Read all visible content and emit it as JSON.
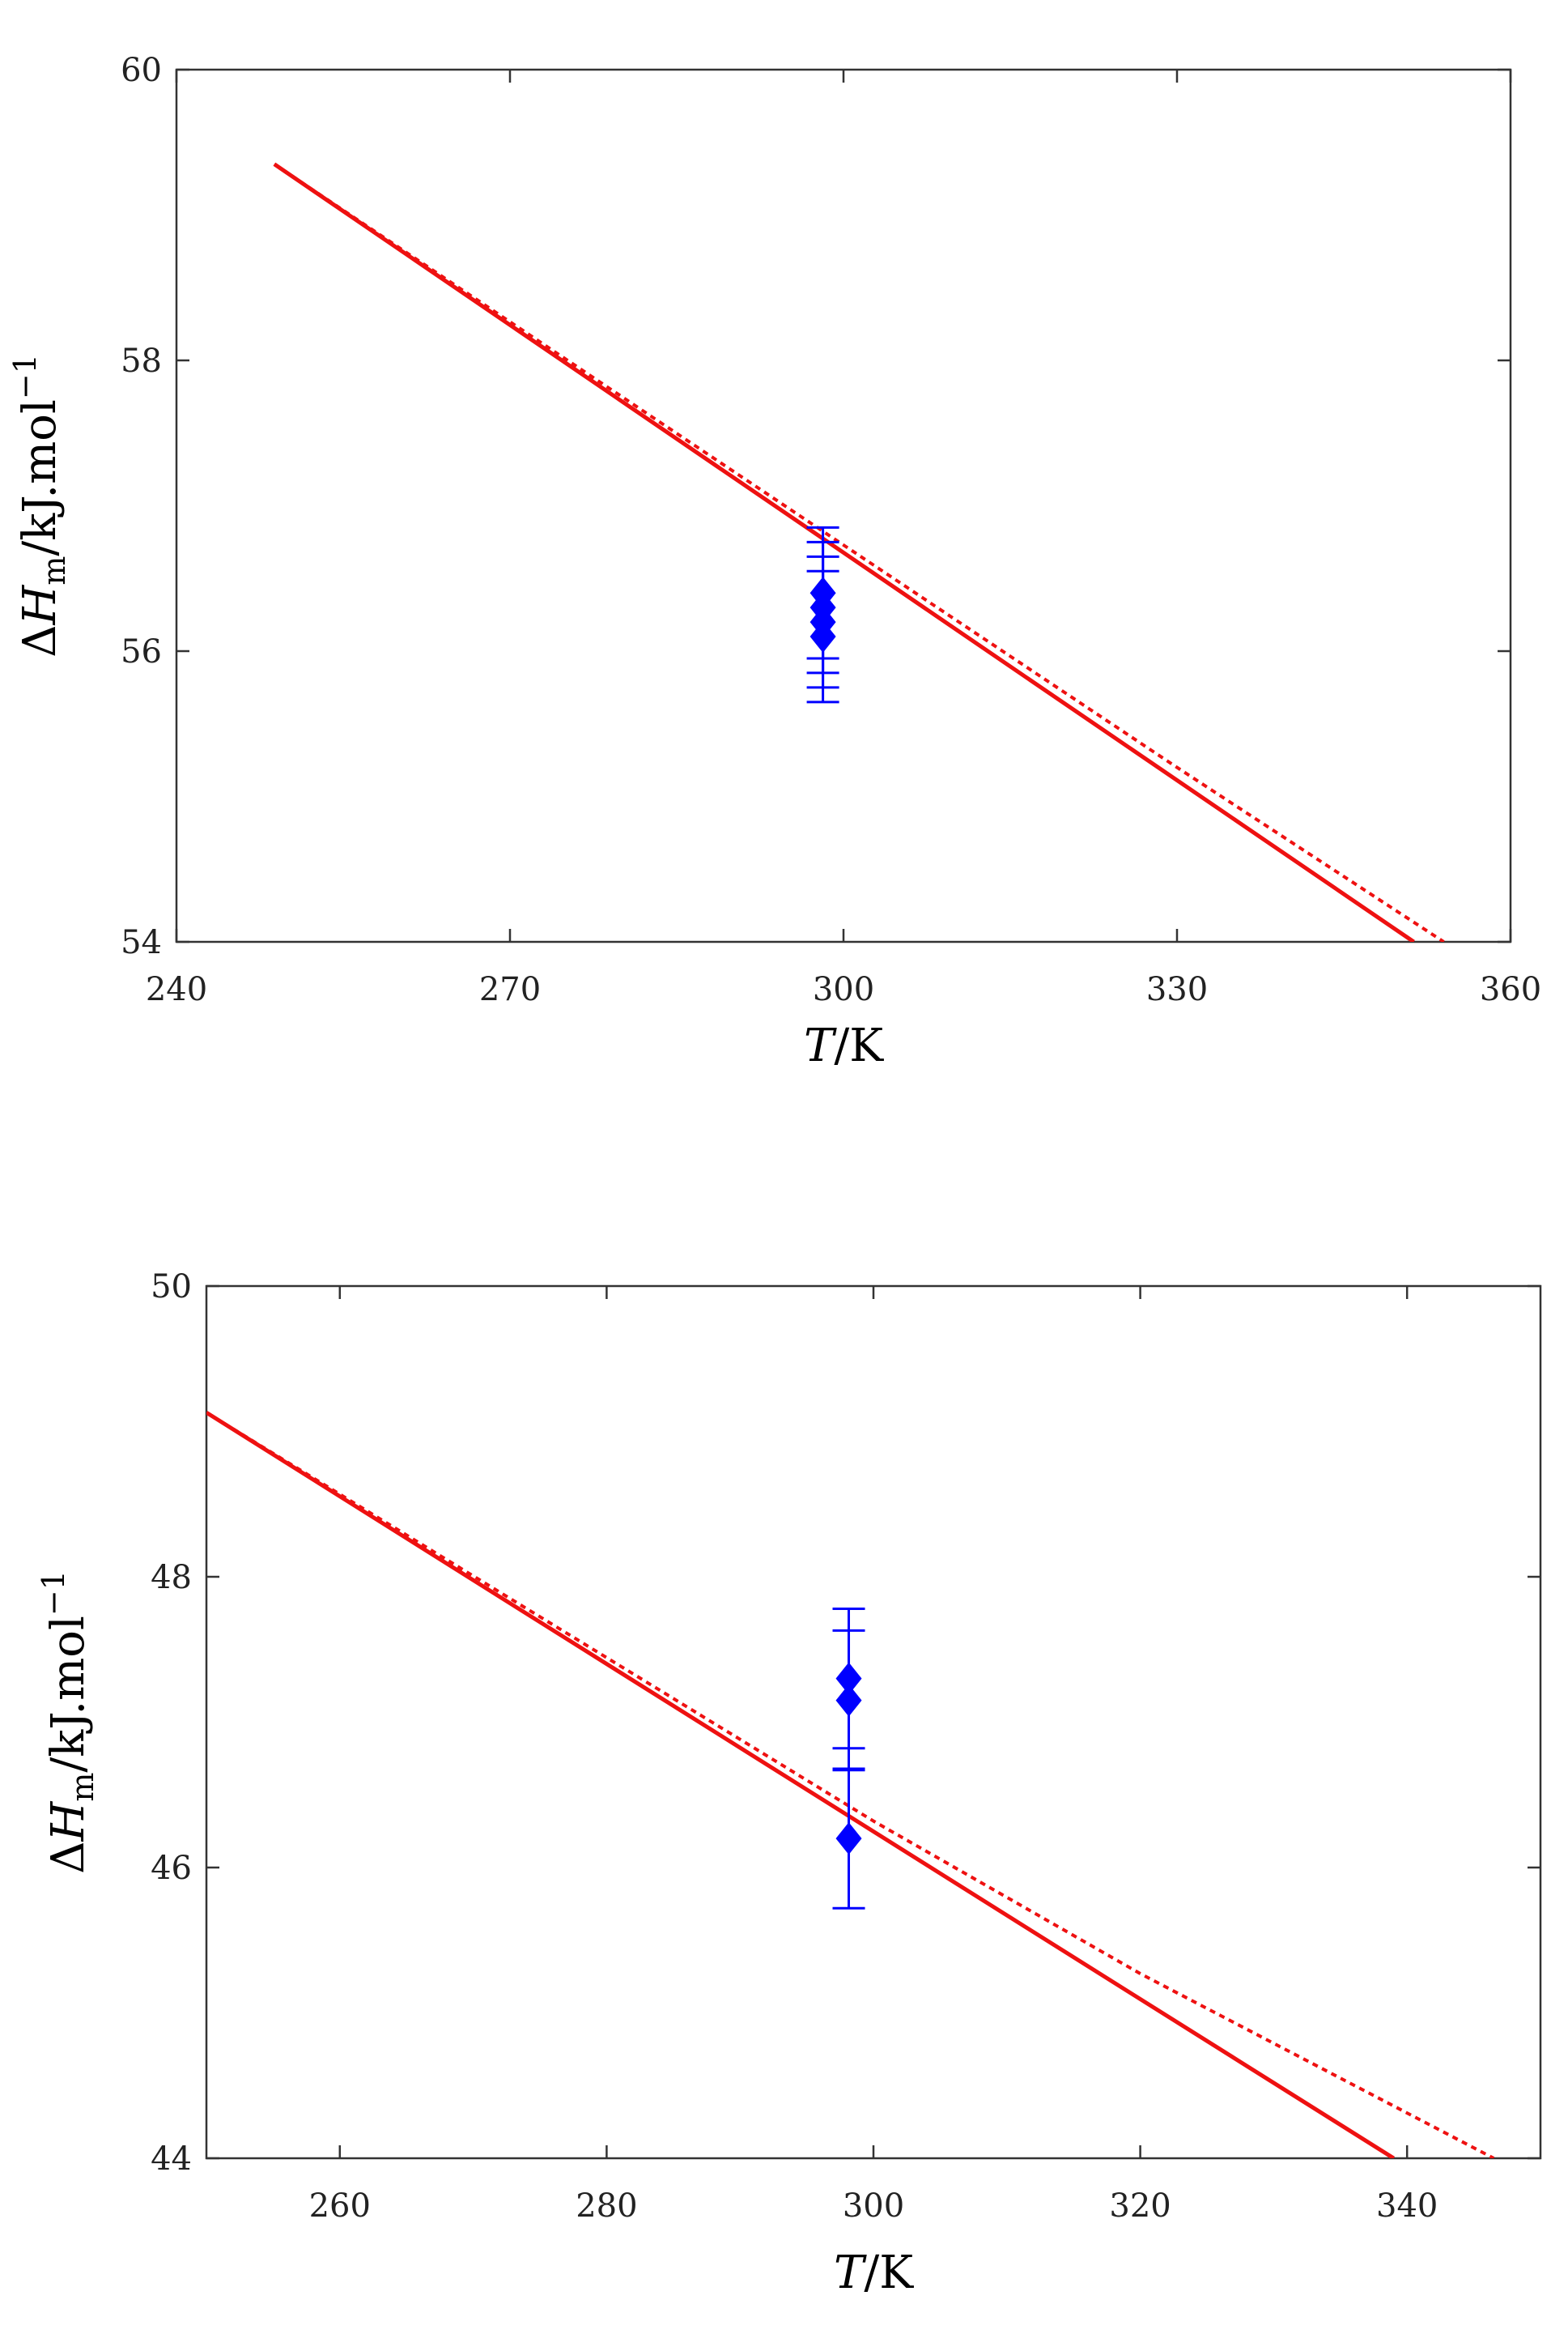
{
  "chart_data": [
    {
      "type": "line",
      "xlabel": {
        "symbol": "T",
        "unit": "/K"
      },
      "ylabel": {
        "prefix": "Δ",
        "symbol": "H",
        "sub": "m",
        "unit": "/kJ.mol",
        "sup": "−1"
      },
      "xlim": [
        240,
        360
      ],
      "ylim": [
        54,
        60
      ],
      "xticks": [
        240,
        270,
        300,
        330,
        360
      ],
      "yticks": [
        54,
        56,
        58,
        60
      ],
      "grid": false,
      "colors": {
        "line": "#ee1111",
        "points": "#0000ff"
      },
      "series": [
        {
          "style": "solid",
          "x": [
            248.8,
            351.3
          ],
          "y": [
            59.35,
            54.0
          ]
        },
        {
          "style": "dotted",
          "x": [
            248.8,
            300,
            330,
            354.0
          ],
          "y": [
            59.35,
            56.73,
            55.2,
            54.0
          ]
        }
      ],
      "points": [
        {
          "x": 298.15,
          "y": 56.1,
          "err": 0.45
        },
        {
          "x": 298.15,
          "y": 56.2,
          "err": 0.45
        },
        {
          "x": 298.15,
          "y": 56.3,
          "err": 0.45
        },
        {
          "x": 298.15,
          "y": 56.4,
          "err": 0.45
        }
      ]
    },
    {
      "type": "line",
      "xlabel": {
        "symbol": "T",
        "unit": "/K"
      },
      "ylabel": {
        "prefix": "Δ",
        "symbol": "H",
        "sub": "m",
        "unit": "/kJ.mol",
        "sup": "−1"
      },
      "xlim": [
        250,
        350
      ],
      "ylim": [
        44,
        50
      ],
      "xticks": [
        260,
        280,
        300,
        320,
        340
      ],
      "yticks": [
        44,
        46,
        48,
        50
      ],
      "grid": false,
      "colors": {
        "line": "#ee1111",
        "points": "#0000ff"
      },
      "series": [
        {
          "style": "solid",
          "x": [
            250,
            339.0
          ],
          "y": [
            49.13,
            44.0
          ]
        },
        {
          "style": "dotted",
          "x": [
            250,
            300,
            320,
            346.5
          ],
          "y": [
            49.13,
            46.32,
            45.27,
            44.0
          ]
        }
      ],
      "points": [
        {
          "x": 298.15,
          "y": 46.2,
          "err": 0.48
        },
        {
          "x": 298.15,
          "y": 47.15,
          "err": 0.48
        },
        {
          "x": 298.15,
          "y": 47.3,
          "err": 0.48
        }
      ]
    }
  ]
}
